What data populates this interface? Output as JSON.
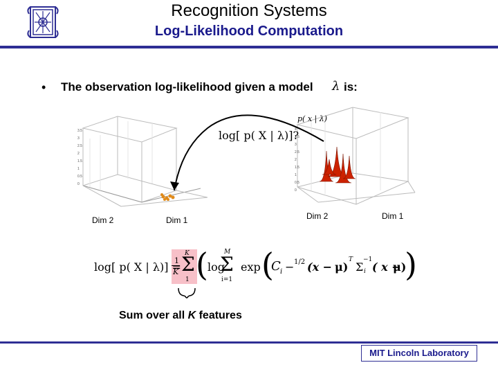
{
  "header": {
    "title": "Recognition Systems",
    "subtitle": "Log-Likelihood Computation"
  },
  "bullet": {
    "text": "The observation log-likelihood given a model",
    "symbol": "λ",
    "tail": "is:"
  },
  "diagram": {
    "query_label": "log[ p( X | λ)]?",
    "density_label": "p( x | λ)",
    "left_plot": {
      "axis_a": "Dim 2",
      "axis_b": "Dim 1"
    },
    "right_plot": {
      "axis_a": "Dim 2",
      "axis_b": "Dim 1"
    },
    "left_ticks": [
      "3.5",
      "3",
      "2.5",
      "2",
      "1.5",
      "1",
      "0.5",
      "0"
    ],
    "right_ticks": [
      "4",
      "3.5",
      "3",
      "2.5",
      "2",
      "1.5",
      "1",
      "0.5",
      "0"
    ],
    "peak_color": "#cc2200",
    "sample_color": "#e08a1a"
  },
  "formula": {
    "lhs": "log[ p( X | λ)] =",
    "frac_num": "1",
    "frac_den": "K",
    "sum1_top": "K",
    "sum1_bot": "1",
    "log": "log",
    "sum2_top": "M",
    "sum2_bot": "i=1",
    "exp": "exp",
    "body": "C",
    "sub_i": "i",
    "half": "1/2",
    "x_term": "(x −",
    "mu": "μ)",
    "transpose": "T",
    "sigma_inv": "Σ",
    "inv": "−1",
    "sub_i2": "i",
    "x2": "( x −",
    "mu2": "μ)"
  },
  "caption": {
    "prefix": "Sum over all ",
    "k": "K",
    "suffix": " features"
  },
  "footer": {
    "label": "MIT Lincoln Laboratory"
  },
  "colors": {
    "title_blue": "#1a1a8c",
    "rule": "#2e2e94",
    "highlight": "#f7c0c8"
  }
}
